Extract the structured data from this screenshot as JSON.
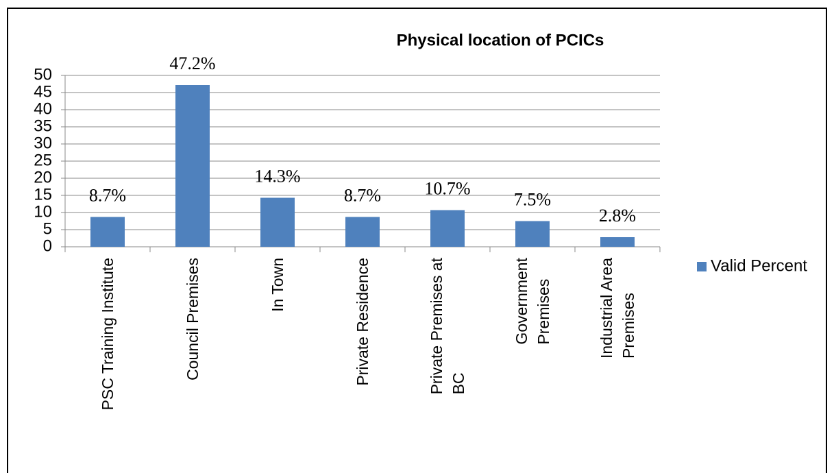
{
  "chart_data": {
    "type": "bar",
    "title": "Physical location of PCICs",
    "categories": [
      "PSC Training Institute",
      "Council Premises",
      "In Town",
      "Private Residence",
      "Private Premises at\nBC",
      "Government\nPremises",
      "Industrial  Area\nPremises"
    ],
    "series": [
      {
        "name": "Valid Percent",
        "color": "#4f81bd",
        "values": [
          8.7,
          47.2,
          14.3,
          8.7,
          10.7,
          7.5,
          2.8
        ],
        "value_labels": [
          "8.7%",
          "47.2%",
          "14.3%",
          "8.7%",
          "10.7%",
          "7.5%",
          "2.8%"
        ]
      }
    ],
    "ylim": [
      0,
      50
    ],
    "yticks": [
      0,
      5,
      10,
      15,
      20,
      25,
      30,
      35,
      40,
      45,
      50
    ],
    "grid": true,
    "legend": "right"
  }
}
